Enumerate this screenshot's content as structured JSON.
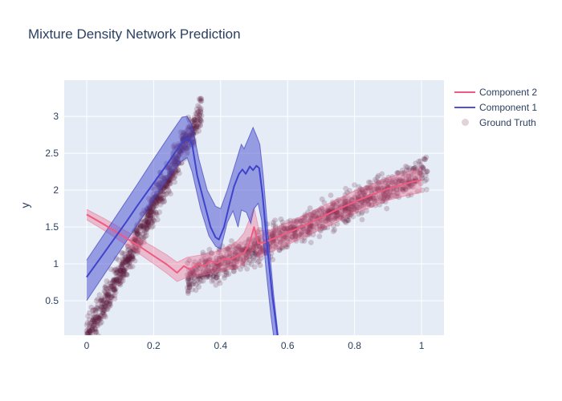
{
  "chart_data": {
    "type": "line",
    "title": "Mixture Density Network Prediction",
    "xlabel": "",
    "ylabel": "y",
    "x_range": [
      -0.067,
      1.067
    ],
    "y_range": [
      0.033,
      3.49
    ],
    "grid": true,
    "legend_position": "outside-top-right",
    "x_ticks": {
      "values": [
        0,
        0.2,
        0.4,
        0.6,
        0.8,
        1
      ],
      "labels": [
        "0",
        "0.2",
        "0.4",
        "0.6",
        "0.8",
        "1"
      ]
    },
    "y_ticks": {
      "values": [
        0.5,
        1,
        1.5,
        2,
        2.5,
        3
      ],
      "labels": [
        "0.5",
        "1",
        "1.5",
        "2",
        "2.5",
        "3"
      ]
    },
    "colors": {
      "plot_background": "#e5ecf6",
      "grid": "#ffffff",
      "text": "#2a3f5f",
      "component1_line": "#3f43cb",
      "component1_band": "rgba(72,75,205,0.50)",
      "component1_band_edge": "rgba(55,58,190,0.65)",
      "component2_line": "#ef5b80",
      "component2_band": "rgba(239,95,133,0.34)",
      "component2_band_edge": "rgba(238,90,128,0.45)",
      "ground_truth_marker": "rgba(88,26,58,0.2)"
    },
    "series": [
      {
        "name": "Component 2",
        "type": "line-with-band",
        "line": [
          [
            0,
            1.67
          ],
          [
            0.05,
            1.54
          ],
          [
            0.1,
            1.4
          ],
          [
            0.15,
            1.26
          ],
          [
            0.2,
            1.11
          ],
          [
            0.24,
            0.99
          ],
          [
            0.27,
            0.88
          ],
          [
            0.29,
            0.97
          ],
          [
            0.31,
            0.92
          ],
          [
            0.33,
            1.0
          ],
          [
            0.35,
            0.97
          ],
          [
            0.37,
            1.04
          ],
          [
            0.39,
            1.01
          ],
          [
            0.41,
            1.07
          ],
          [
            0.43,
            1.06
          ],
          [
            0.45,
            1.11
          ],
          [
            0.47,
            1.15
          ],
          [
            0.485,
            1.26
          ],
          [
            0.5,
            1.5
          ],
          [
            0.512,
            1.28
          ],
          [
            0.53,
            1.29
          ],
          [
            0.55,
            1.33
          ],
          [
            0.58,
            1.38
          ],
          [
            0.62,
            1.46
          ],
          [
            0.66,
            1.54
          ],
          [
            0.7,
            1.63
          ],
          [
            0.74,
            1.72
          ],
          [
            0.78,
            1.8
          ],
          [
            0.82,
            1.88
          ],
          [
            0.86,
            1.95
          ],
          [
            0.9,
            2.02
          ],
          [
            0.94,
            2.07
          ],
          [
            0.97,
            2.11
          ],
          [
            1.0,
            2.14
          ]
        ],
        "band_upper": [
          [
            0,
            1.74
          ],
          [
            0.05,
            1.62
          ],
          [
            0.1,
            1.49
          ],
          [
            0.15,
            1.36
          ],
          [
            0.2,
            1.23
          ],
          [
            0.24,
            1.12
          ],
          [
            0.27,
            1.02
          ],
          [
            0.3,
            1.09
          ],
          [
            0.34,
            1.12
          ],
          [
            0.38,
            1.16
          ],
          [
            0.42,
            1.23
          ],
          [
            0.45,
            1.31
          ],
          [
            0.47,
            1.42
          ],
          [
            0.5,
            1.76
          ],
          [
            0.515,
            1.45
          ],
          [
            0.55,
            1.46
          ],
          [
            0.6,
            1.56
          ],
          [
            0.65,
            1.66
          ],
          [
            0.7,
            1.77
          ],
          [
            0.75,
            1.88
          ],
          [
            0.8,
            1.99
          ],
          [
            0.85,
            2.08
          ],
          [
            0.9,
            2.17
          ],
          [
            0.95,
            2.24
          ],
          [
            1.0,
            2.3
          ]
        ],
        "band_lower": [
          [
            0,
            1.6
          ],
          [
            0.05,
            1.46
          ],
          [
            0.1,
            1.31
          ],
          [
            0.15,
            1.16
          ],
          [
            0.2,
            1.0
          ],
          [
            0.24,
            0.87
          ],
          [
            0.27,
            0.76
          ],
          [
            0.3,
            0.82
          ],
          [
            0.34,
            0.84
          ],
          [
            0.38,
            0.88
          ],
          [
            0.42,
            0.92
          ],
          [
            0.45,
            0.95
          ],
          [
            0.47,
            1.0
          ],
          [
            0.5,
            1.22
          ],
          [
            0.515,
            1.08
          ],
          [
            0.55,
            1.16
          ],
          [
            0.6,
            1.26
          ],
          [
            0.65,
            1.36
          ],
          [
            0.7,
            1.47
          ],
          [
            0.75,
            1.57
          ],
          [
            0.8,
            1.68
          ],
          [
            0.85,
            1.77
          ],
          [
            0.9,
            1.86
          ],
          [
            0.95,
            1.92
          ],
          [
            1.0,
            1.97
          ]
        ]
      },
      {
        "name": "Component 1",
        "type": "line-with-band",
        "line": [
          [
            0,
            0.82
          ],
          [
            0.03,
            1.01
          ],
          [
            0.06,
            1.2
          ],
          [
            0.09,
            1.39
          ],
          [
            0.12,
            1.58
          ],
          [
            0.15,
            1.78
          ],
          [
            0.18,
            1.97
          ],
          [
            0.21,
            2.16
          ],
          [
            0.24,
            2.35
          ],
          [
            0.27,
            2.55
          ],
          [
            0.29,
            2.67
          ],
          [
            0.305,
            2.71
          ],
          [
            0.315,
            2.62
          ],
          [
            0.33,
            2.2
          ],
          [
            0.35,
            1.85
          ],
          [
            0.37,
            1.5
          ],
          [
            0.385,
            1.36
          ],
          [
            0.395,
            1.33
          ],
          [
            0.41,
            1.5
          ],
          [
            0.425,
            1.78
          ],
          [
            0.44,
            2.05
          ],
          [
            0.455,
            2.22
          ],
          [
            0.465,
            2.28
          ],
          [
            0.475,
            2.22
          ],
          [
            0.487,
            2.32
          ],
          [
            0.497,
            2.27
          ],
          [
            0.507,
            2.33
          ],
          [
            0.515,
            2.3
          ],
          [
            0.525,
            1.95
          ],
          [
            0.54,
            1.2
          ],
          [
            0.555,
            0.55
          ],
          [
            0.57,
            0.03
          ]
        ],
        "band_upper": [
          [
            0,
            1.05
          ],
          [
            0.05,
            1.39
          ],
          [
            0.1,
            1.73
          ],
          [
            0.15,
            2.07
          ],
          [
            0.2,
            2.42
          ],
          [
            0.25,
            2.76
          ],
          [
            0.285,
            2.99
          ],
          [
            0.3,
            3.0
          ],
          [
            0.315,
            2.88
          ],
          [
            0.335,
            2.42
          ],
          [
            0.36,
            2.0
          ],
          [
            0.385,
            1.78
          ],
          [
            0.4,
            1.75
          ],
          [
            0.42,
            2.0
          ],
          [
            0.44,
            2.3
          ],
          [
            0.455,
            2.52
          ],
          [
            0.462,
            2.62
          ],
          [
            0.47,
            2.56
          ],
          [
            0.483,
            2.7
          ],
          [
            0.497,
            2.85
          ],
          [
            0.508,
            2.73
          ],
          [
            0.517,
            2.62
          ],
          [
            0.527,
            2.2
          ],
          [
            0.542,
            1.4
          ],
          [
            0.558,
            0.6
          ],
          [
            0.572,
            0.03
          ]
        ],
        "band_lower": [
          [
            0,
            0.5
          ],
          [
            0.05,
            0.84
          ],
          [
            0.1,
            1.18
          ],
          [
            0.15,
            1.52
          ],
          [
            0.2,
            1.86
          ],
          [
            0.25,
            2.2
          ],
          [
            0.28,
            2.38
          ],
          [
            0.3,
            2.44
          ],
          [
            0.315,
            2.25
          ],
          [
            0.34,
            1.75
          ],
          [
            0.365,
            1.38
          ],
          [
            0.385,
            1.24
          ],
          [
            0.4,
            1.2
          ],
          [
            0.42,
            1.56
          ],
          [
            0.437,
            1.72
          ],
          [
            0.452,
            1.5
          ],
          [
            0.462,
            1.73
          ],
          [
            0.477,
            1.7
          ],
          [
            0.49,
            1.55
          ],
          [
            0.5,
            1.75
          ],
          [
            0.512,
            1.82
          ],
          [
            0.522,
            1.6
          ],
          [
            0.535,
            0.95
          ],
          [
            0.55,
            0.3
          ],
          [
            0.558,
            0.03
          ]
        ]
      },
      {
        "name": "Ground Truth",
        "type": "scatter",
        "marker_radius": 3.4,
        "seed": 7,
        "segments": [
          {
            "n": 900,
            "x_min": 0.0,
            "x_max": 0.345,
            "slope": 8.9,
            "intercept": 0.0,
            "noise_sd": 0.11
          },
          {
            "n": 1050,
            "x_min": 0.3,
            "x_max": 1.02,
            "slope": 2.03,
            "intercept": 0.19,
            "noise_sd": 0.1
          }
        ]
      }
    ],
    "legend": [
      {
        "label": "Component 2",
        "swatch": "line",
        "color": "#ef5b80"
      },
      {
        "label": "Component 1",
        "swatch": "line",
        "color": "#5153d4"
      },
      {
        "label": "Ground Truth",
        "swatch": "dot",
        "color": "#e2d3da"
      }
    ]
  }
}
